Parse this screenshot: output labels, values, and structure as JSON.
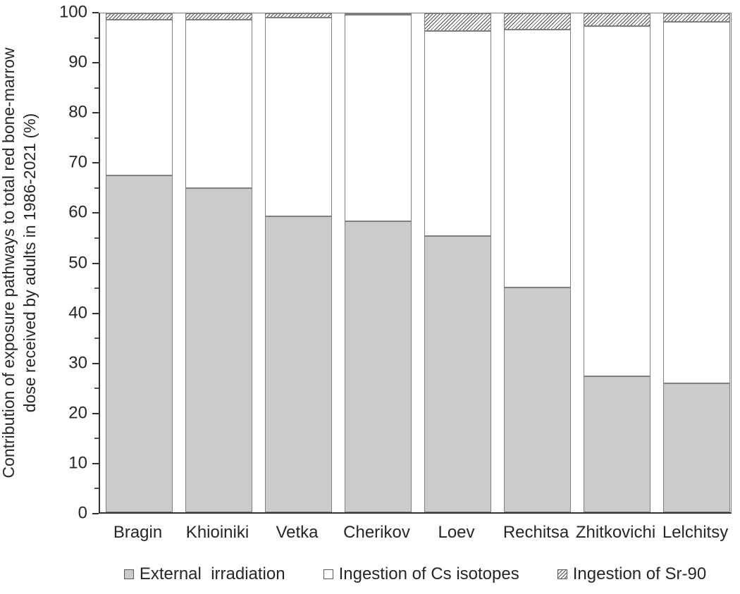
{
  "chart_data": {
    "type": "bar",
    "stacked": true,
    "stacked_total": 100,
    "categories": [
      "Bragin",
      "Khioiniki",
      "Vetka",
      "Cherikov",
      "Loev",
      "Rechitsa",
      "Zhitkovichi",
      "Lelchitsy"
    ],
    "series": [
      {
        "name": "External  irradiation",
        "style": "external",
        "values": [
          67.5,
          65.0,
          59.3,
          58.3,
          55.4,
          45.1,
          27.2,
          25.8
        ]
      },
      {
        "name": "Ingestion of Cs isotopes",
        "style": "cs",
        "values": [
          31.3,
          33.8,
          39.9,
          41.4,
          41.1,
          51.6,
          70.2,
          72.5
        ]
      },
      {
        "name": "Ingestion of Sr-90",
        "style": "sr90",
        "values": [
          1.2,
          1.2,
          0.8,
          0.3,
          3.5,
          3.3,
          2.6,
          1.7
        ]
      }
    ],
    "ylabel_line1": "Contribution of exposure pathways to total red bone-marrow",
    "ylabel_line2": "dose received by adults in 1986-2021 (%)",
    "xlabel": "",
    "title": "",
    "ylim": [
      0,
      100
    ],
    "y_major_ticks": [
      0,
      10,
      20,
      30,
      40,
      50,
      60,
      70,
      80,
      90,
      100
    ],
    "y_minor_step": 5,
    "grid": "off",
    "legend_position": "bottom"
  },
  "colors": {
    "bar_gray_fill": "#cbcbcb",
    "bar_border": "#7f7f7f",
    "hatch_line": "#4d4d4d",
    "axis_line": "#333333",
    "frame_line": "#808080",
    "text": "#262626",
    "background": "#ffffff"
  }
}
